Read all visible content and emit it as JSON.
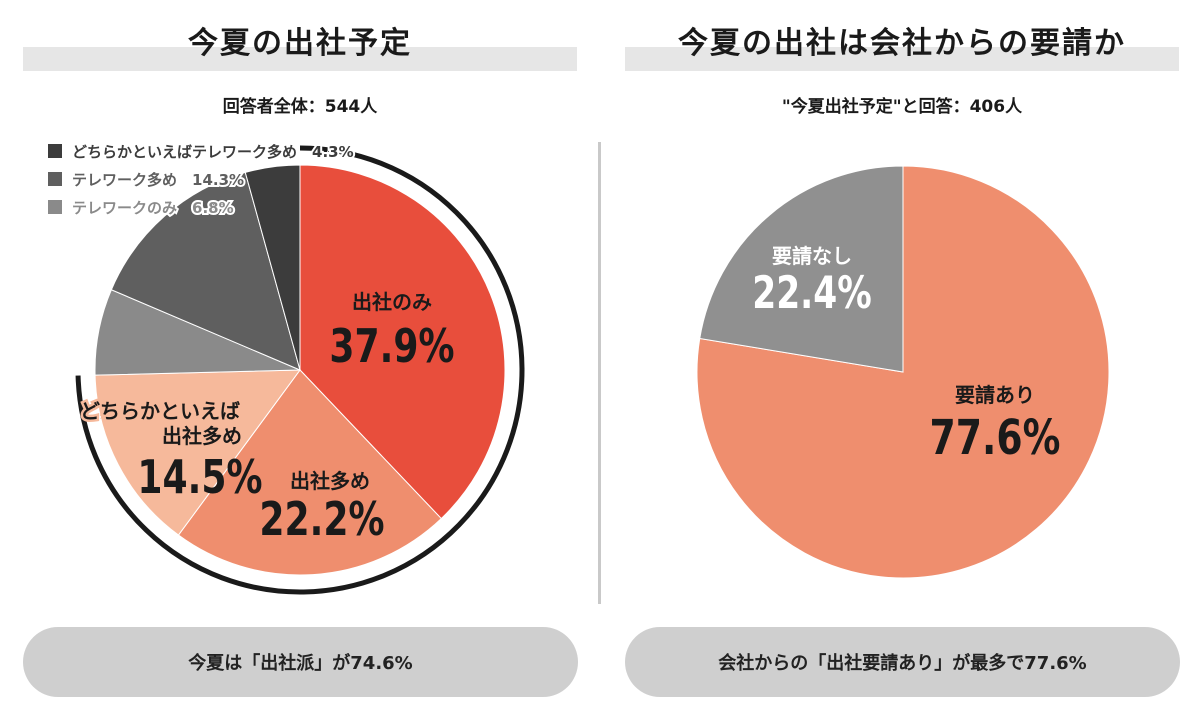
{
  "left": {
    "title": "今夏の出社予定",
    "subtitle": "回答者全体：544人",
    "summary": "今夏は「出社派」が74.6%"
  },
  "right": {
    "title": "今夏の出社は会社からの要請か",
    "subtitle": "\"今夏出社予定\"と回答：406人",
    "summary": "会社からの「出社要請あり」が最多で77.6%"
  },
  "colors": {
    "red": "#e84e3c",
    "salmon": "#ef8e6e",
    "peach": "#f6b99b",
    "gray_light": "#8a8a8a",
    "gray_mid": "#5f5f5f",
    "gray_dark": "#3c3c3c",
    "gray_pie": "#909090"
  },
  "chart_data": [
    {
      "type": "pie",
      "slices": [
        {
          "label": "出社のみ",
          "value": 37.9,
          "display": "37.9%",
          "color": "#e84e3c"
        },
        {
          "label": "出社多め",
          "value": 22.2,
          "display": "22.2%",
          "color": "#ef8e6e"
        },
        {
          "label": "どちらかといえば出社多め",
          "label_lines": [
            "どちらかといえば",
            "出社多め"
          ],
          "value": 14.5,
          "display": "14.5%",
          "color": "#f6b99b"
        },
        {
          "label": "テレワークのみ",
          "value": 6.8,
          "display": "6.8%",
          "color": "#8a8a8a"
        },
        {
          "label": "テレワーク多め",
          "value": 14.3,
          "display": "14.3%",
          "color": "#5f5f5f"
        },
        {
          "label": "どちらかといえばテレワーク多め",
          "value": 4.3,
          "display": "4.3%",
          "color": "#3c3c3c"
        }
      ],
      "legend": [
        {
          "label": "どちらかといえばテレワーク多め",
          "value": "4.3%",
          "color": "#3c3c3c"
        },
        {
          "label": "テレワーク多め",
          "value": "14.3%",
          "color": "#5f5f5f"
        },
        {
          "label": "テレワークのみ",
          "value": "6.8%",
          "color": "#8a8a8a"
        }
      ],
      "legend_position": "top-left"
    },
    {
      "type": "pie",
      "slices": [
        {
          "label": "要請あり",
          "value": 77.6,
          "display": "77.6%",
          "color": "#ef8e6e"
        },
        {
          "label": "要請なし",
          "value": 22.4,
          "display": "22.4%",
          "color": "#909090"
        }
      ]
    }
  ]
}
